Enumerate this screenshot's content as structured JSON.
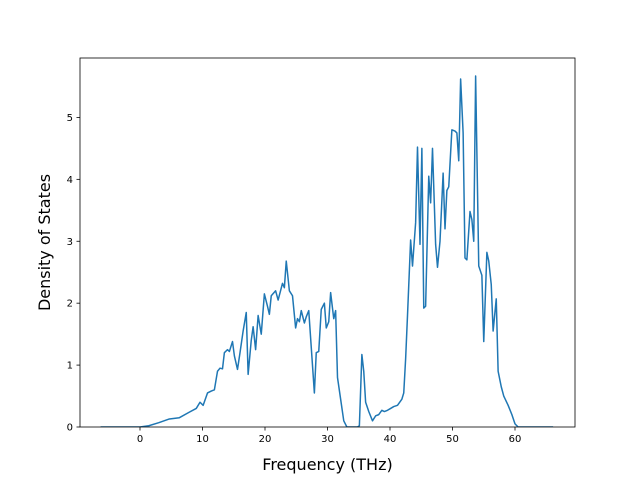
{
  "chart_data": {
    "type": "line",
    "x_label": "Frequency (THz)",
    "y_label": "Density of States",
    "xlim": [
      -9.6,
      69.6
    ],
    "ylim": [
      0,
      5.96
    ],
    "xticks": [
      0,
      10,
      20,
      30,
      40,
      50,
      60
    ],
    "yticks": [
      0,
      1,
      2,
      3,
      4,
      5
    ],
    "series": [
      {
        "color": "#1f77b4",
        "x": [
          -6.3,
          0,
          1.4,
          3.0,
          4.7,
          6.3,
          7.9,
          9.0,
          9.6,
          10.1,
          10.8,
          11.4,
          11.9,
          12.4,
          12.8,
          13.2,
          13.5,
          14.0,
          14.3,
          14.8,
          15.1,
          15.6,
          16.0,
          16.5,
          17.0,
          17.3,
          17.8,
          18.1,
          18.5,
          18.9,
          19.4,
          19.9,
          20.4,
          20.7,
          21.0,
          21.7,
          22.1,
          22.8,
          23.1,
          23.4,
          23.9,
          24.4,
          24.9,
          25.2,
          25.5,
          25.8,
          26.3,
          26.6,
          27.0,
          27.9,
          28.2,
          28.6,
          29.0,
          29.5,
          29.8,
          30.2,
          30.5,
          31.0,
          31.3,
          31.6,
          32.1,
          32.6,
          33.1,
          34.8,
          35.1,
          35.5,
          35.8,
          36.1,
          36.6,
          37.2,
          37.7,
          38.2,
          38.7,
          39.1,
          39.6,
          40.1,
          40.6,
          41.2,
          41.9,
          42.2,
          42.5,
          42.8,
          43.3,
          43.6,
          44.1,
          44.4,
          44.8,
          45.1,
          45.4,
          45.7,
          46.2,
          46.5,
          46.8,
          47.3,
          47.6,
          48.0,
          48.5,
          48.8,
          49.1,
          49.4,
          49.9,
          50.4,
          50.7,
          51.0,
          51.3,
          51.7,
          52.0,
          52.3,
          52.8,
          53.1,
          53.4,
          53.7,
          54.2,
          54.7,
          55.0,
          55.5,
          55.8,
          56.2,
          56.5,
          57.0,
          57.3,
          57.8,
          58.2,
          58.9,
          59.5,
          60.0,
          60.5,
          66.1
        ],
        "values": [
          0,
          0,
          0.02,
          0.07,
          0.13,
          0.15,
          0.24,
          0.3,
          0.4,
          0.35,
          0.55,
          0.58,
          0.6,
          0.9,
          0.95,
          0.94,
          1.2,
          1.25,
          1.22,
          1.38,
          1.15,
          0.93,
          1.2,
          1.55,
          1.85,
          0.85,
          1.4,
          1.62,
          1.25,
          1.8,
          1.5,
          2.15,
          1.95,
          1.82,
          2.12,
          2.2,
          2.05,
          2.32,
          2.25,
          2.68,
          2.2,
          2.12,
          1.6,
          1.75,
          1.7,
          1.88,
          1.68,
          1.78,
          1.88,
          0.55,
          1.2,
          1.22,
          1.9,
          2.0,
          1.6,
          1.7,
          2.17,
          1.75,
          1.88,
          0.8,
          0.45,
          0.1,
          0,
          0,
          0.02,
          1.17,
          0.9,
          0.4,
          0.25,
          0.1,
          0.18,
          0.2,
          0.27,
          0.25,
          0.27,
          0.3,
          0.33,
          0.35,
          0.45,
          0.55,
          1.1,
          1.8,
          3.02,
          2.6,
          3.3,
          4.52,
          2.95,
          4.5,
          1.92,
          1.95,
          4.05,
          3.62,
          4.5,
          2.95,
          2.58,
          3.0,
          4.1,
          3.2,
          3.82,
          3.88,
          4.8,
          4.78,
          4.75,
          4.3,
          5.62,
          4.75,
          2.73,
          2.7,
          3.48,
          3.35,
          3.0,
          5.67,
          2.6,
          2.45,
          1.38,
          2.82,
          2.68,
          2.3,
          1.55,
          2.07,
          0.9,
          0.65,
          0.5,
          0.35,
          0.2,
          0.05,
          0,
          0
        ]
      }
    ]
  }
}
